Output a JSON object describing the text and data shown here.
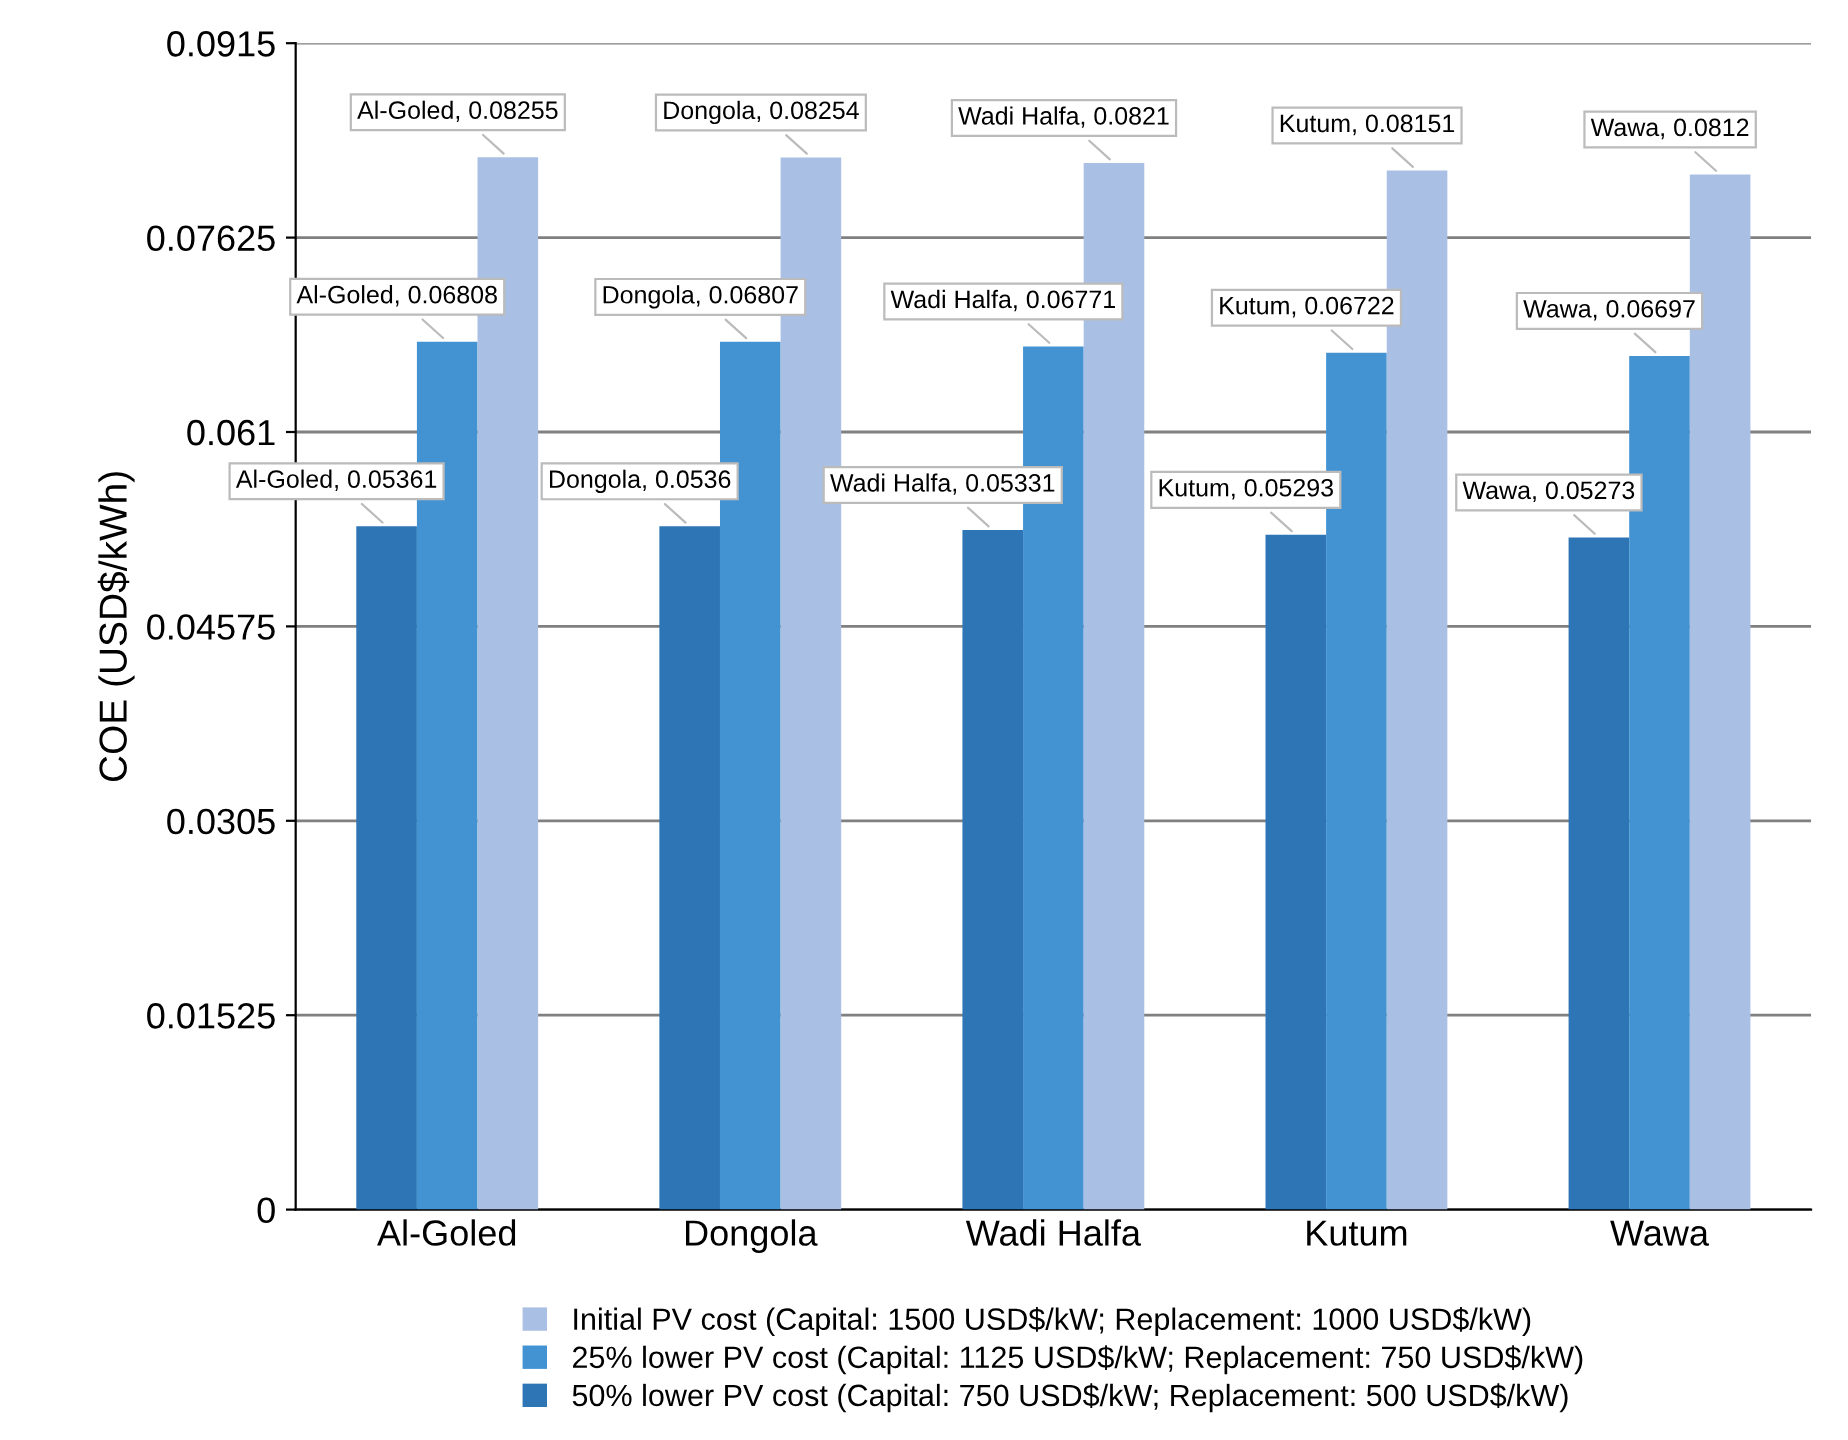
{
  "chart_data": {
    "type": "bar",
    "ylabel": "COE (USD$/kWh)",
    "categories": [
      "Al-Goled",
      "Dongola",
      "Wadi Halfa",
      "Kutum",
      "Wawa"
    ],
    "series": [
      {
        "name": "50% lower PV cost (Capital: 750 USD$/kW; Replacement: 500 USD$/kW)",
        "color": "#2e75b6",
        "values": [
          0.05361,
          0.0536,
          0.05331,
          0.05293,
          0.05273
        ],
        "value_labels": [
          "Al-Goled, 0.05361",
          "Dongola, 0.0536",
          "Wadi Halfa, 0.05331",
          "Kutum, 0.05293",
          "Wawa, 0.05273"
        ]
      },
      {
        "name": "25% lower PV cost (Capital: 1125 USD$/kW; Replacement: 750 USD$/kW)",
        "color": "#4393d3",
        "values": [
          0.06808,
          0.06807,
          0.06771,
          0.06722,
          0.06697
        ],
        "value_labels": [
          "Al-Goled, 0.06808",
          "Dongola, 0.06807",
          "Wadi Halfa, 0.06771",
          "Kutum, 0.06722",
          "Wawa, 0.06697"
        ]
      },
      {
        "name": "Initial PV cost (Capital: 1500 USD$/kW; Replacement: 1000 USD$/kW)",
        "color": "#a9c0e4",
        "values": [
          0.08255,
          0.08254,
          0.0821,
          0.08151,
          0.0812
        ],
        "value_labels": [
          "Al-Goled, 0.08255",
          "Dongola, 0.08254",
          "Wadi Halfa, 0.0821",
          "Kutum, 0.08151",
          "Wawa, 0.0812"
        ]
      }
    ],
    "ylim": [
      0,
      0.0915
    ],
    "yticks": [
      0,
      0.01525,
      0.0305,
      0.04575,
      0.061,
      0.07625,
      0.0915
    ],
    "grid": "y",
    "legend": "bottom"
  }
}
